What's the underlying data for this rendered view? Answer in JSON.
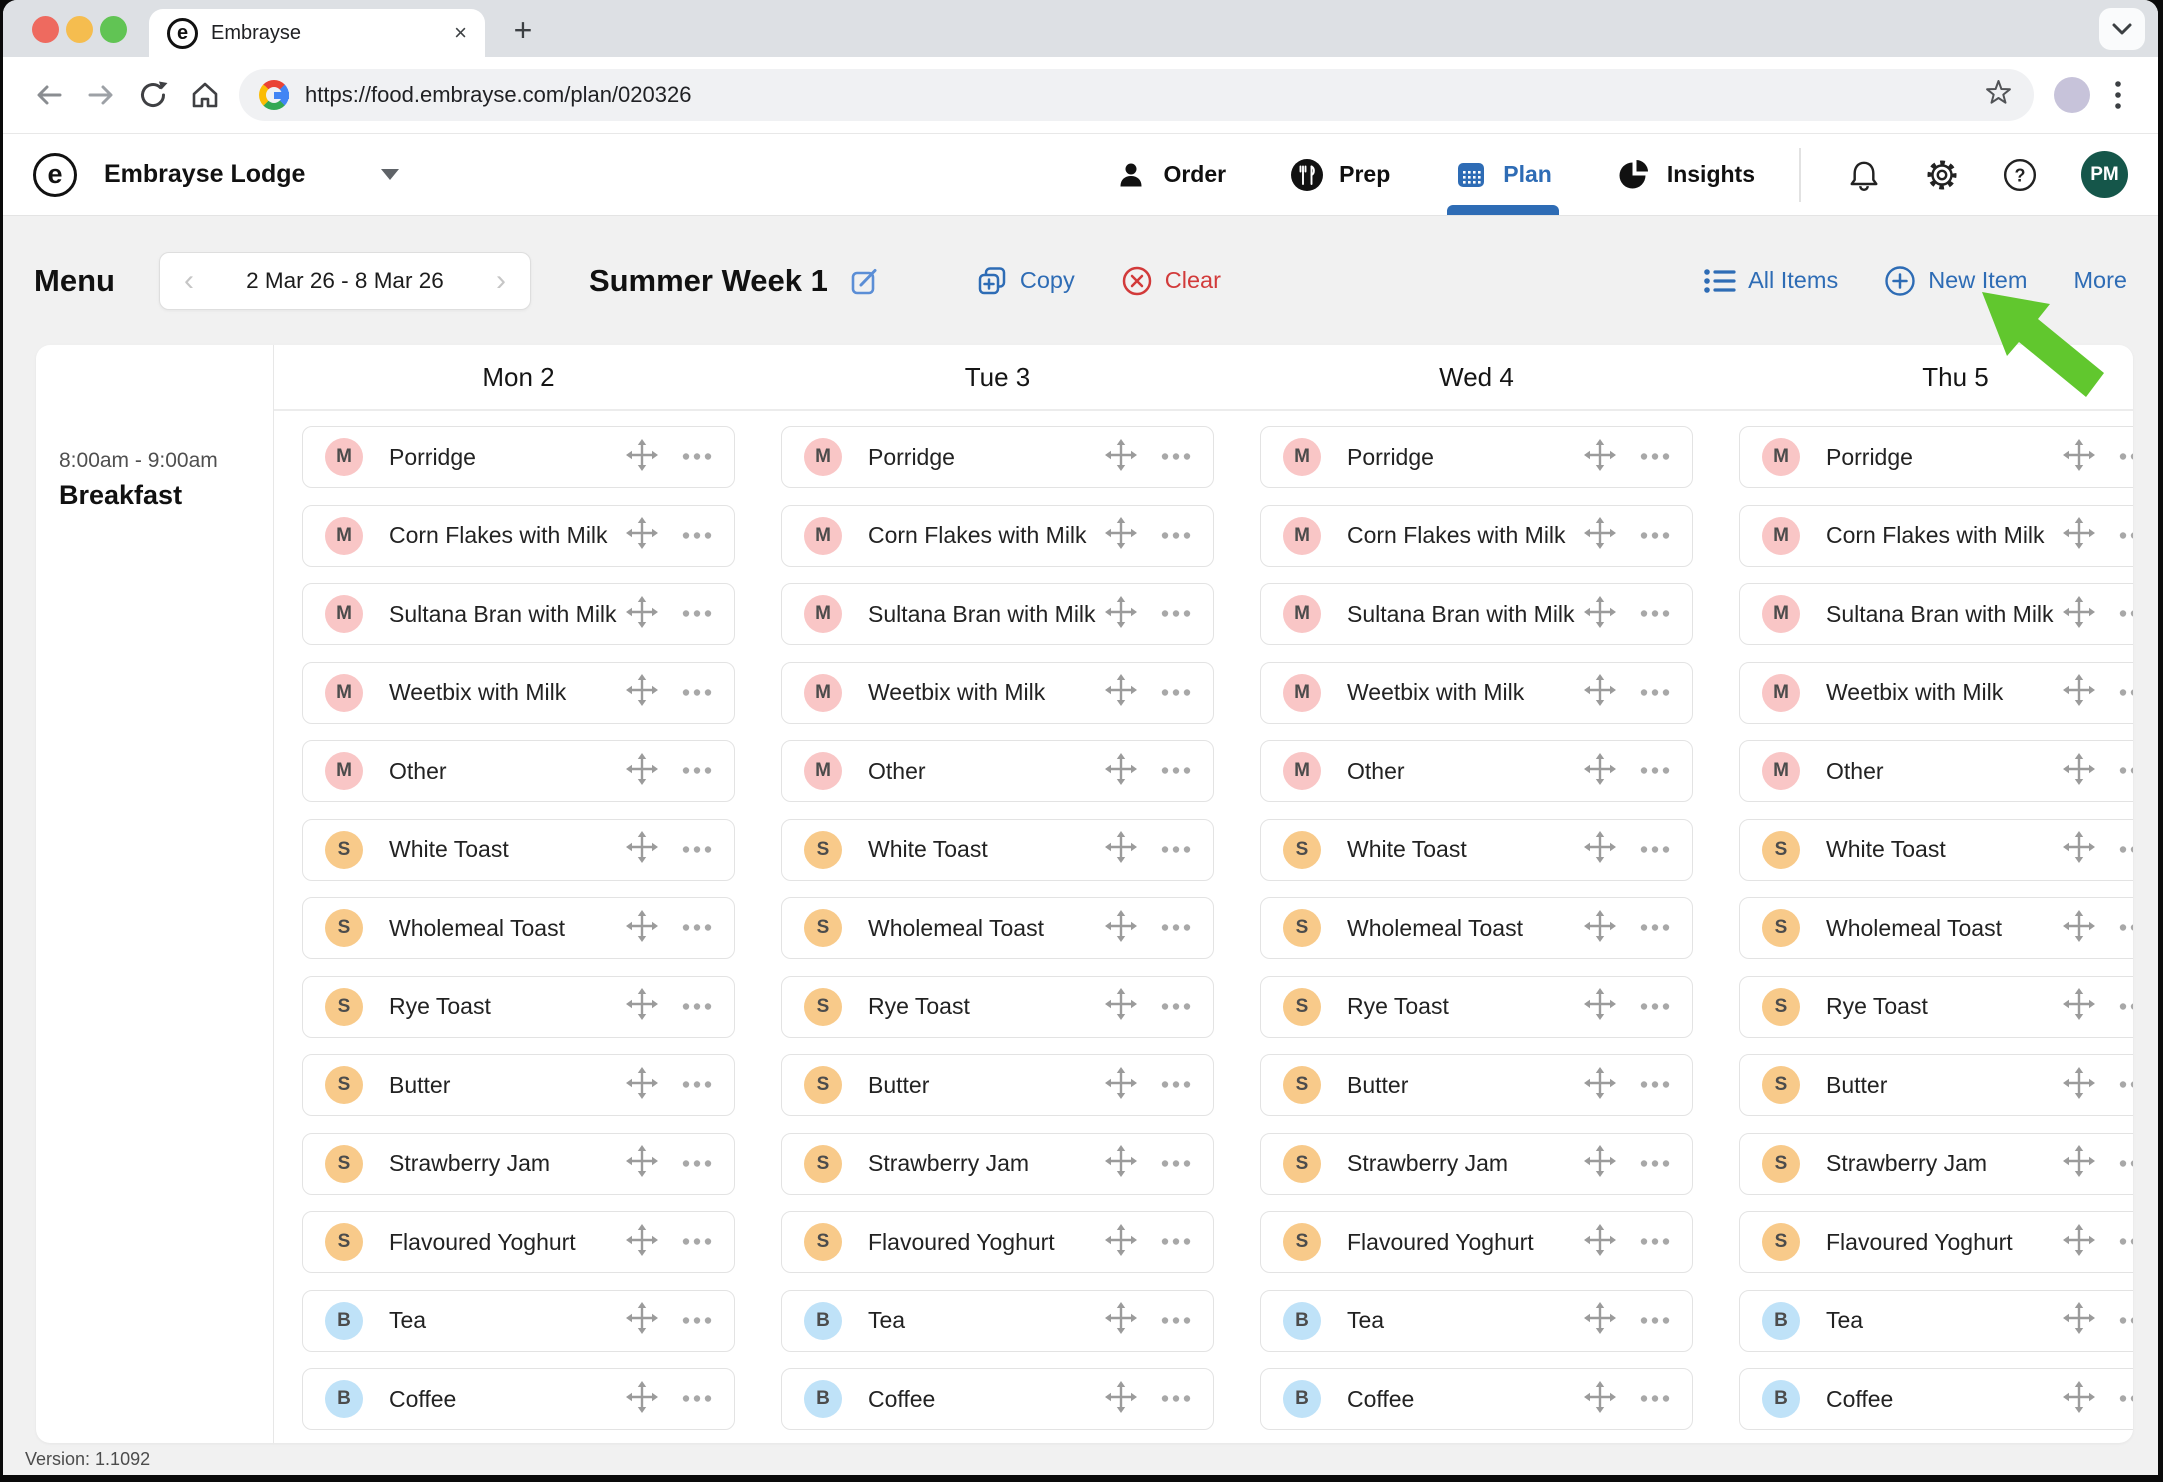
{
  "browser": {
    "tab_title": "Embrayse",
    "tab_close": "×",
    "new_tab": "+",
    "url": "https://food.embrayse.com/plan/020326",
    "logo_letter": "e"
  },
  "header": {
    "org_name": "Embrayse Lodge",
    "nav": [
      {
        "label": "Order",
        "icon": "person-icon",
        "active": false
      },
      {
        "label": "Prep",
        "icon": "cutlery-icon",
        "active": false
      },
      {
        "label": "Plan",
        "icon": "calendar-icon",
        "active": true
      },
      {
        "label": "Insights",
        "icon": "pie-icon",
        "active": false
      }
    ],
    "avatar_initials": "PM"
  },
  "menubar": {
    "title": "Menu",
    "prev": "‹",
    "next": "›",
    "date_range": "2 Mar 26 - 8 Mar 26",
    "plan_name": "Summer Week 1",
    "copy_label": "Copy",
    "clear_label": "Clear",
    "all_items_label": "All Items",
    "new_item_label": "New Item",
    "more_label": "More"
  },
  "plan": {
    "meal": {
      "time": "8:00am - 9:00am",
      "name": "Breakfast"
    },
    "days": [
      "Mon 2",
      "Tue 3",
      "Wed 4",
      "Thu 5"
    ],
    "items": [
      {
        "badge": "M",
        "name": "Porridge"
      },
      {
        "badge": "M",
        "name": "Corn Flakes with Milk"
      },
      {
        "badge": "M",
        "name": "Sultana Bran with Milk"
      },
      {
        "badge": "M",
        "name": "Weetbix with Milk"
      },
      {
        "badge": "M",
        "name": "Other"
      },
      {
        "badge": "S",
        "name": "White Toast"
      },
      {
        "badge": "S",
        "name": "Wholemeal Toast"
      },
      {
        "badge": "S",
        "name": "Rye Toast"
      },
      {
        "badge": "S",
        "name": "Butter"
      },
      {
        "badge": "S",
        "name": "Strawberry Jam"
      },
      {
        "badge": "S",
        "name": "Flavoured Yoghurt"
      },
      {
        "badge": "B",
        "name": "Tea"
      },
      {
        "badge": "B",
        "name": "Coffee"
      }
    ],
    "badge_colors": {
      "M": {
        "bg": "#f9c6c6",
        "fg": "#4c4c4c"
      },
      "S": {
        "bg": "#f8ca8a",
        "fg": "#4c4c4c"
      },
      "B": {
        "bg": "#bfe2f8",
        "fg": "#4c4c4c"
      }
    }
  },
  "footer": {
    "version": "Version: 1.1092"
  },
  "colors": {
    "accent_blue": "#2e6cb5",
    "danger_red": "#d23a3a",
    "arrow_green": "#61c72e",
    "avatar_green": "#15564a"
  }
}
